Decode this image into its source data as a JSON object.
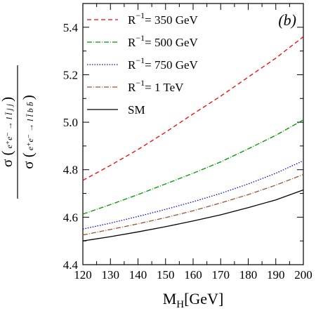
{
  "chart_data": {
    "type": "line",
    "panel_label": "(b)",
    "xlabel_main": "M",
    "xlabel_sub": "H",
    "xlabel_unit": "[GeV]",
    "ylabel_numerator": {
      "sigma": "σ",
      "process": "e⁺e⁻ → l l̄ j j"
    },
    "ylabel_denominator": {
      "sigma": "σ",
      "process": "e⁺e⁻ → l l̄ b b̄"
    },
    "xlim": [
      120,
      200
    ],
    "ylim": [
      4.4,
      5.5
    ],
    "x_ticks": [
      "120",
      "130",
      "140",
      "150",
      "160",
      "170",
      "180",
      "190",
      "200"
    ],
    "y_ticks": [
      "4.4",
      "4.6",
      "4.8",
      "5.0",
      "5.2",
      "5.4"
    ],
    "grid": false,
    "legend_position": "top-left",
    "x": [
      120,
      130,
      140,
      150,
      160,
      170,
      180,
      190,
      200
    ],
    "series": [
      {
        "name": "R⁻¹= 350 GeV",
        "legend_main": "R",
        "legend_sup": "−1",
        "legend_rest": "= 350 GeV",
        "color": "#ff0000",
        "dash": "6,4",
        "values": [
          4.755,
          4.818,
          4.885,
          4.958,
          5.035,
          5.11,
          5.19,
          5.27,
          5.36
        ]
      },
      {
        "name": "R⁻¹= 500 GeV",
        "legend_main": "R",
        "legend_sup": "−1",
        "legend_rest": "= 500 GeV",
        "color": "#009900",
        "dash": "7,2,1,2",
        "values": [
          4.613,
          4.653,
          4.695,
          4.74,
          4.785,
          4.833,
          4.888,
          4.945,
          5.01
        ]
      },
      {
        "name": "R⁻¹= 750 GeV",
        "legend_main": "R",
        "legend_sup": "−1",
        "legend_rest": "= 750 GeV",
        "color": "#0000ff",
        "dash": "1.5,2",
        "values": [
          4.55,
          4.575,
          4.603,
          4.633,
          4.665,
          4.7,
          4.74,
          4.785,
          4.838
        ]
      },
      {
        "name": "R⁻¹= 1 TeV",
        "legend_main": "R",
        "legend_sup": "−1",
        "legend_rest": "= 1 TeV",
        "color": "#a0522d",
        "dash": "7,2,1,2",
        "values": [
          4.525,
          4.548,
          4.572,
          4.598,
          4.627,
          4.66,
          4.695,
          4.735,
          4.78
        ]
      },
      {
        "name": "SM",
        "legend_main": "SM",
        "legend_sup": "",
        "legend_rest": "",
        "color": "#000000",
        "dash": "",
        "values": [
          4.5,
          4.518,
          4.538,
          4.56,
          4.584,
          4.61,
          4.64,
          4.673,
          4.715
        ]
      }
    ]
  }
}
